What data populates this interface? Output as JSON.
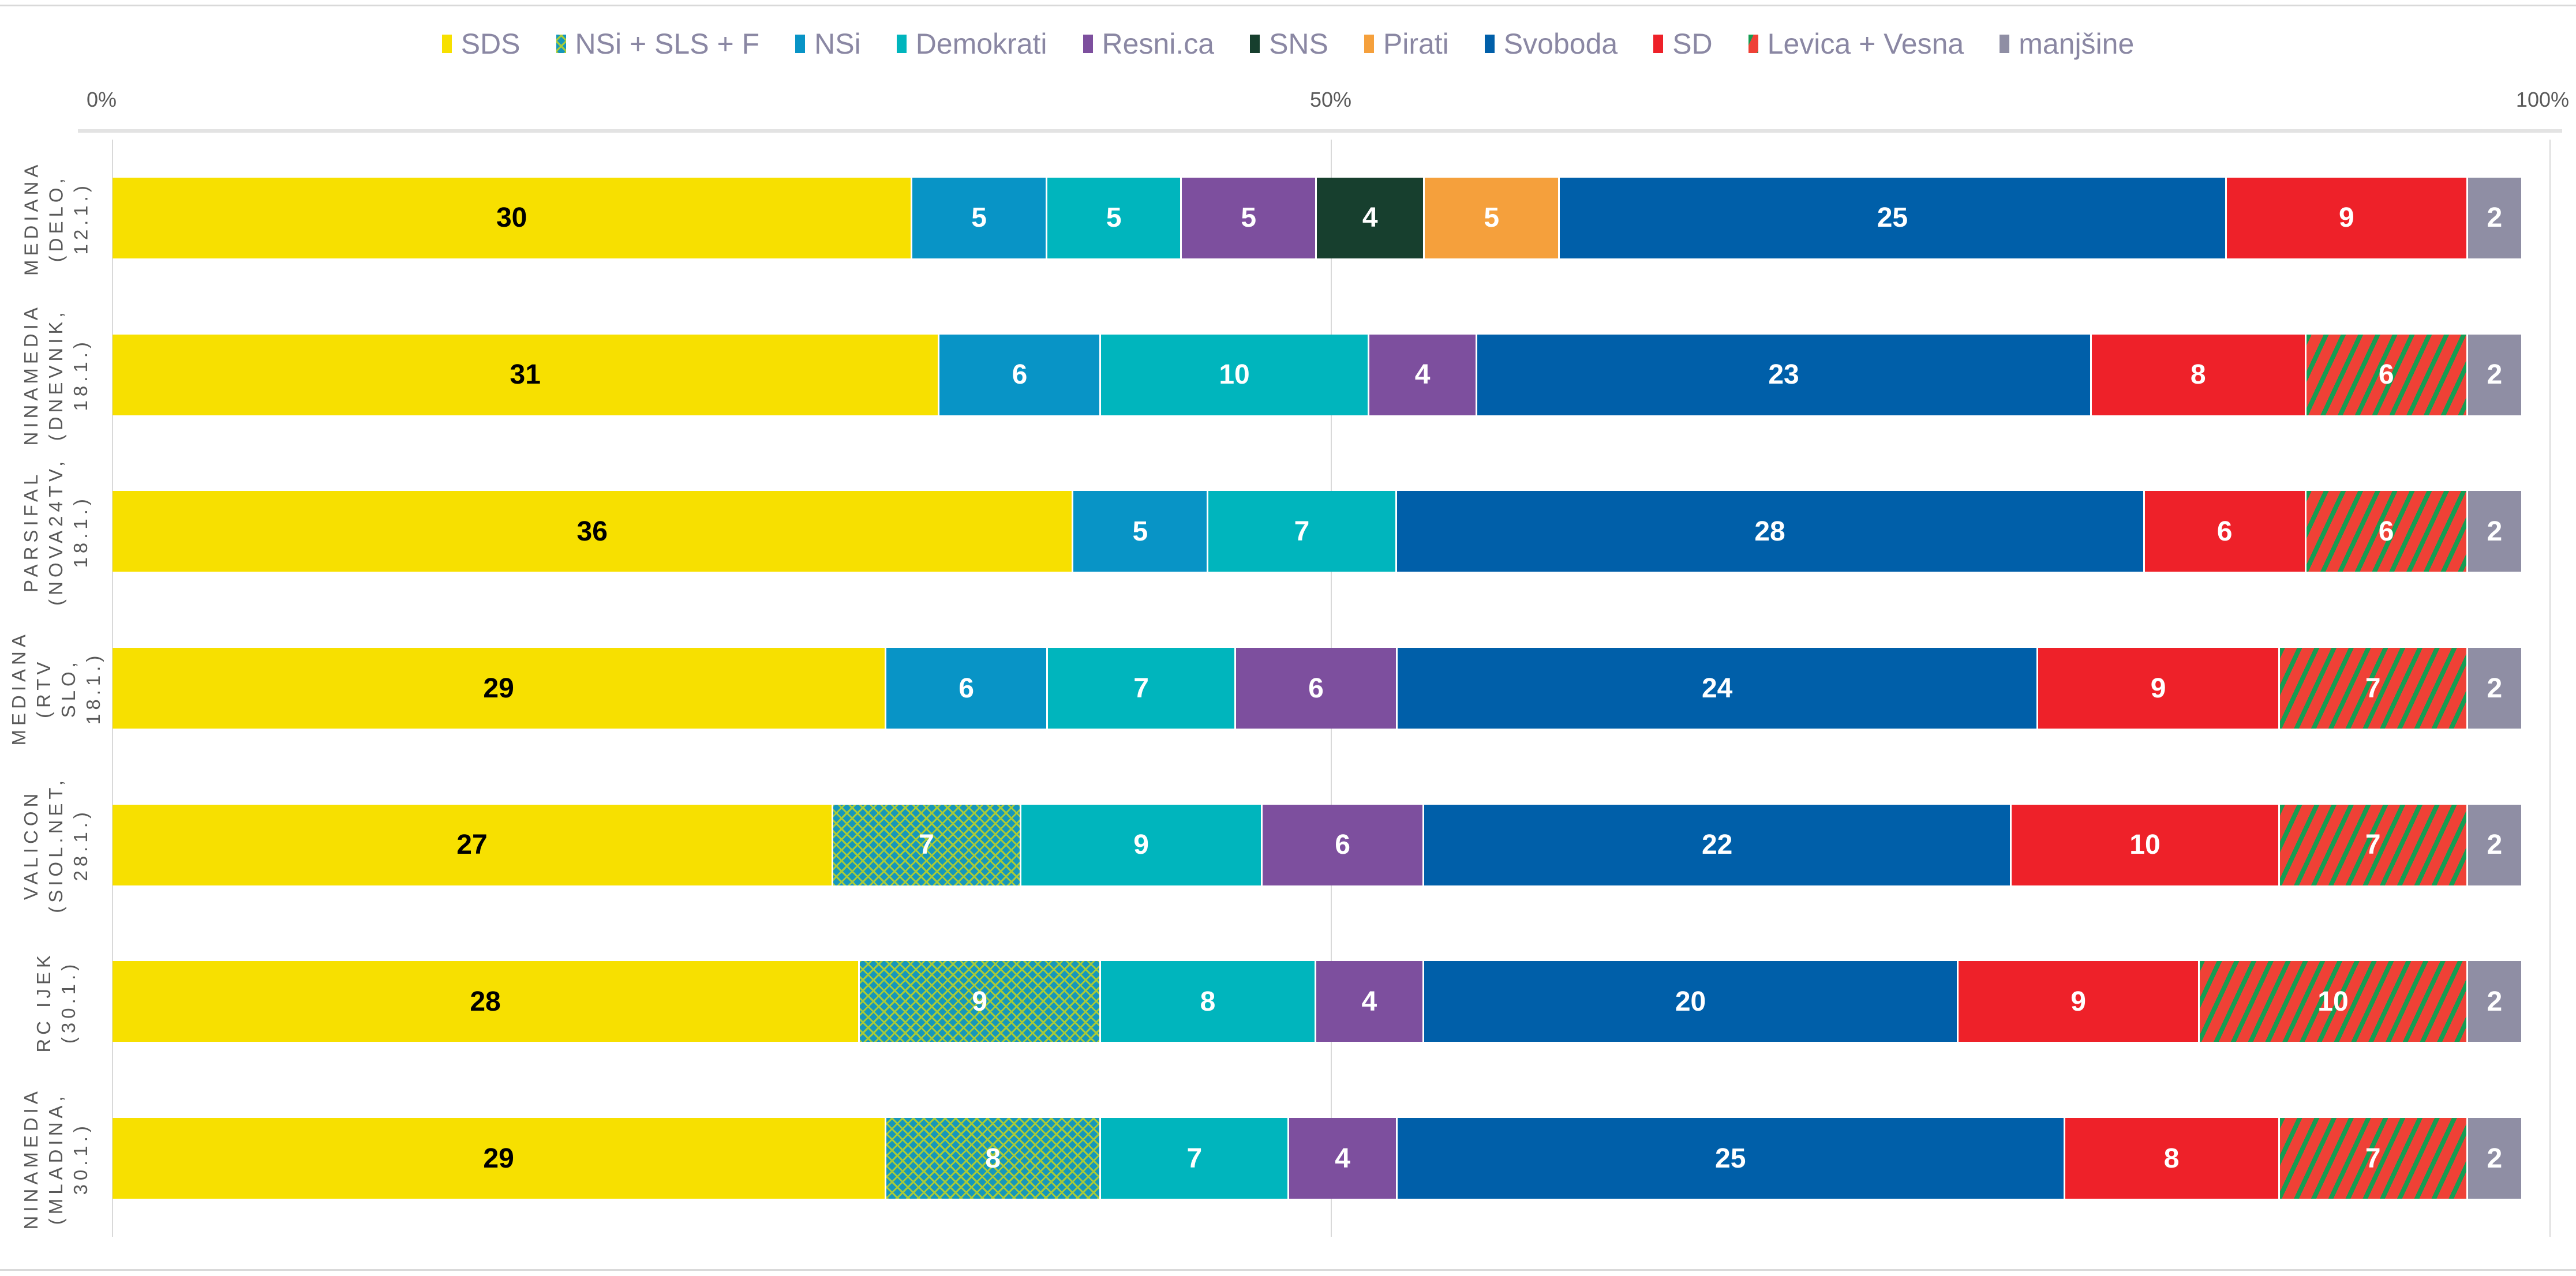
{
  "page": {
    "background": "#ffffff",
    "frame_line_color": "#d9d9d9",
    "gridline_color": "#d9d9d9",
    "legend_text_color": "#8a87a3",
    "axis_text_color": "#595959"
  },
  "chart_data": {
    "type": "bar",
    "stacked": true,
    "orientation": "horizontal",
    "title": "",
    "xlabel": "",
    "ylabel": "",
    "legend_position": "top",
    "grid": "vertical, ticks at 0% / 50% / 100%",
    "x_axis": {
      "ticks": [
        "0%",
        "50%",
        "100%"
      ],
      "range_percent": [
        0,
        100
      ]
    },
    "categories": [
      "MEDIANA (DELO, 12.1.)",
      "NINAMEDIA (DNEVNIK, 18.1.)",
      "PARSIFAL (NOVA24TV, 18.1.)",
      "MEDIANA (RTV SLO, 18.1.)",
      "VALICON (SIOL.NET, 28.1.)",
      "RC IJEK (30.1.)",
      "NINAMEDIA (MLADINA, 30.1.)"
    ],
    "category_label_lines": [
      [
        "MEDIANA",
        "(DELO,",
        "12.1.)"
      ],
      [
        "NINAMEDIA",
        "(DNEVNIK,",
        "18.1.)"
      ],
      [
        "PARSIFAL",
        "(NOVA24TV,",
        "18.1.)"
      ],
      [
        "MEDIANA",
        "(RTV SLO,",
        "18.1.)"
      ],
      [
        "VALICON",
        "(SIOL.NET,",
        "28.1.)"
      ],
      [
        "RC IJEK",
        "(30.1.)"
      ],
      [
        "NINAMEDIA",
        "(MLADINA,",
        "30.1.)"
      ]
    ],
    "series": [
      {
        "name": "SDS",
        "color": "#f7e000",
        "label_color": "#000000",
        "values": [
          30,
          31,
          36,
          29,
          27,
          28,
          29
        ]
      },
      {
        "name": "NSi + SLS + F",
        "pattern": {
          "type": "zigzag",
          "bg": "#1697ba",
          "fg": "#a8cb38"
        },
        "label_color": "#ffffff",
        "values": [
          null,
          null,
          null,
          null,
          7,
          9,
          8
        ]
      },
      {
        "name": "NSi",
        "color": "#0894c6",
        "label_color": "#ffffff",
        "values": [
          5,
          6,
          5,
          6,
          null,
          null,
          null
        ]
      },
      {
        "name": "Demokrati",
        "color": "#00b5bd",
        "label_color": "#ffffff",
        "values": [
          5,
          10,
          7,
          7,
          9,
          8,
          7
        ]
      },
      {
        "name": "Resni.ca",
        "color": "#7d4f9e",
        "label_color": "#ffffff",
        "values": [
          5,
          4,
          null,
          6,
          6,
          4,
          4
        ]
      },
      {
        "name": "SNS",
        "color": "#173f2e",
        "label_color": "#ffffff",
        "values": [
          4,
          null,
          null,
          null,
          null,
          null,
          null
        ]
      },
      {
        "name": "Pirati",
        "color": "#f5a03c",
        "label_color": "#ffffff",
        "values": [
          5,
          null,
          null,
          null,
          null,
          null,
          null
        ]
      },
      {
        "name": "Svoboda",
        "color": "#005fa9",
        "label_color": "#ffffff",
        "values": [
          25,
          23,
          28,
          24,
          22,
          20,
          25
        ]
      },
      {
        "name": "SD",
        "color": "#ee2129",
        "label_color": "#ffffff",
        "values": [
          9,
          8,
          6,
          9,
          10,
          9,
          8
        ]
      },
      {
        "name": "Levica + Vesna",
        "pattern": {
          "type": "stripes",
          "bg": "#ef4136",
          "fg": "#169c52"
        },
        "label_color": "#ffffff",
        "values": [
          null,
          6,
          6,
          7,
          7,
          10,
          7
        ]
      },
      {
        "name": "manjšine",
        "color": "#8f8ea4",
        "label_color": "#ffffff",
        "values": [
          2,
          2,
          2,
          2,
          2,
          2,
          2
        ]
      }
    ]
  }
}
